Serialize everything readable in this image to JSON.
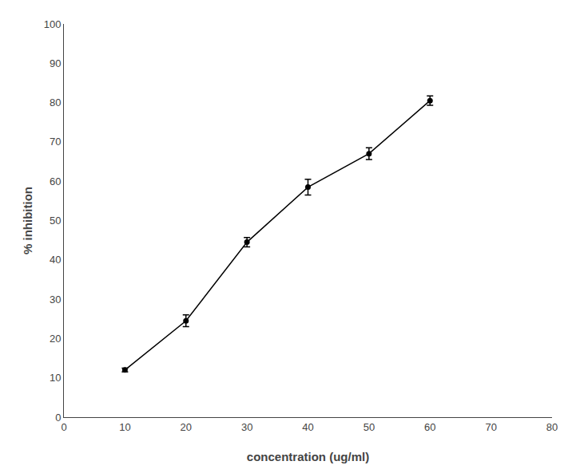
{
  "chart_data": {
    "type": "line",
    "x": [
      10,
      20,
      30,
      40,
      50,
      60
    ],
    "values": [
      12.0,
      24.5,
      44.5,
      58.5,
      67.0,
      80.5
    ],
    "yerr": [
      0.5,
      1.5,
      1.2,
      2.0,
      1.5,
      1.2
    ],
    "xlabel": "concentration (ug/ml)",
    "ylabel": "% inhibition",
    "xlim": [
      0,
      80
    ],
    "ylim": [
      0,
      100
    ],
    "xticks": [
      0,
      10,
      20,
      30,
      40,
      50,
      60,
      70,
      80
    ],
    "yticks": [
      0,
      10,
      20,
      30,
      40,
      50,
      60,
      70,
      80,
      90,
      100
    ],
    "color": "#000000",
    "marker": "circle",
    "line_style": "solid",
    "grid": false
  }
}
